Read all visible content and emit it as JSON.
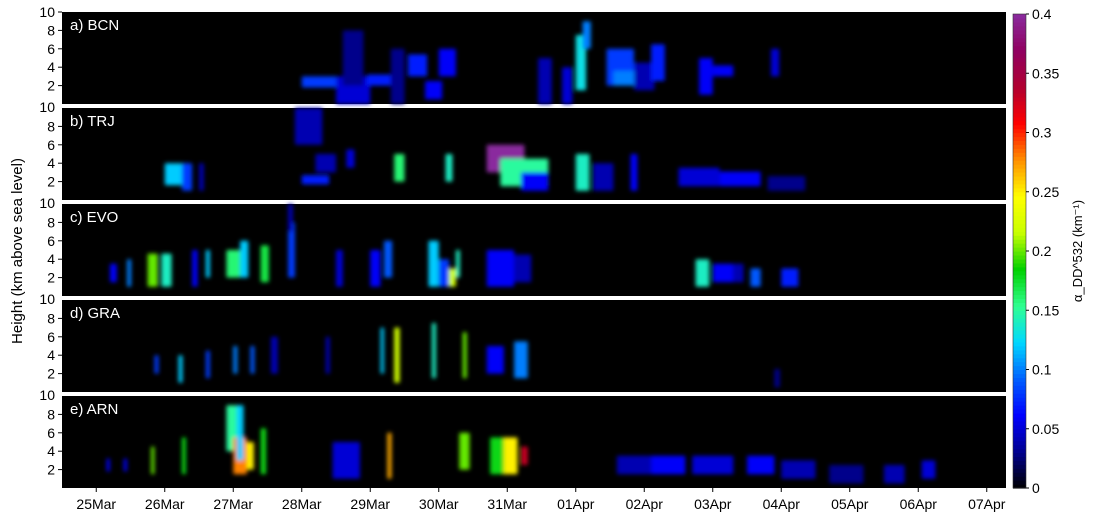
{
  "chart_data": {
    "type": "heatmap",
    "ylabel": "Height (km above sea level)",
    "x_tick_labels": [
      "25Mar",
      "26Mar",
      "27Mar",
      "28Mar",
      "29Mar",
      "30Mar",
      "31Mar",
      "01Apr",
      "02Apr",
      "03Apr",
      "04Apr",
      "05Apr",
      "06Apr",
      "07Apr"
    ],
    "y_ticks_top": [
      2,
      4,
      6,
      8,
      10
    ],
    "y_ticks_lower": [
      2,
      4,
      6,
      8
    ],
    "ylim_km": [
      0,
      10
    ],
    "colorbar": {
      "label": "α_DD^532 (km⁻¹)",
      "min": 0,
      "max": 0.4,
      "tick_labels": [
        "0",
        "0.05",
        "0.1",
        "0.15",
        "0.2",
        "0.25",
        "0.3",
        "0.35",
        "0.4"
      ],
      "colormap": [
        "#000000",
        "#00008f",
        "#0000ff",
        "#0060ff",
        "#00d8ff",
        "#30ff90",
        "#00d000",
        "#c8ff00",
        "#ffff00",
        "#ff9000",
        "#ff0000",
        "#b00030",
        "#900060",
        "#8a2b9e"
      ]
    },
    "panels": [
      {
        "label": "a) BCN",
        "cells": [
          {
            "day": 28.0,
            "w": 0.55,
            "h": 2.4,
            "d": 0.6,
            "v": 0.08
          },
          {
            "day": 28.5,
            "w": 0.5,
            "h": 1.5,
            "d": 1.5,
            "v": 0.05
          },
          {
            "day": 28.6,
            "w": 0.3,
            "h": 5.0,
            "d": 3.0,
            "v": 0.03
          },
          {
            "day": 28.95,
            "w": 0.35,
            "h": 2.6,
            "d": 0.6,
            "v": 0.07
          },
          {
            "day": 29.3,
            "w": 0.2,
            "h": 3.0,
            "d": 3.0,
            "v": 0.03
          },
          {
            "day": 29.55,
            "w": 0.28,
            "h": 4.2,
            "d": 1.2,
            "v": 0.07
          },
          {
            "day": 29.8,
            "w": 0.25,
            "h": 1.5,
            "d": 1.0,
            "v": 0.06
          },
          {
            "day": 30.0,
            "w": 0.25,
            "h": 4.5,
            "d": 1.5,
            "v": 0.06
          },
          {
            "day": 31.45,
            "w": 0.2,
            "h": 2.5,
            "d": 2.5,
            "v": 0.04
          },
          {
            "day": 31.8,
            "w": 0.15,
            "h": 2.0,
            "d": 2.0,
            "v": 0.05
          },
          {
            "day": 32.0,
            "w": 0.15,
            "h": 4.5,
            "d": 3.0,
            "v": 0.13
          },
          {
            "day": 32.1,
            "w": 0.12,
            "h": 7.5,
            "d": 1.5,
            "v": 0.1
          },
          {
            "day": 32.45,
            "w": 0.4,
            "h": 4.0,
            "d": 2.0,
            "v": 0.08
          },
          {
            "day": 32.55,
            "w": 0.35,
            "h": 2.8,
            "d": 0.8,
            "v": 0.1
          },
          {
            "day": 32.85,
            "w": 0.3,
            "h": 3.0,
            "d": 1.5,
            "v": 0.04
          },
          {
            "day": 33.1,
            "w": 0.2,
            "h": 4.5,
            "d": 2.0,
            "v": 0.07
          },
          {
            "day": 33.8,
            "w": 0.2,
            "h": 3.0,
            "d": 2.0,
            "v": 0.06
          },
          {
            "day": 34.0,
            "w": 0.3,
            "h": 3.6,
            "d": 0.6,
            "v": 0.06
          },
          {
            "day": 34.85,
            "w": 0.12,
            "h": 4.5,
            "d": 1.5,
            "v": 0.05
          }
        ]
      },
      {
        "label": "b) TRJ",
        "cells": [
          {
            "day": 26.0,
            "w": 0.35,
            "h": 2.8,
            "d": 1.2,
            "v": 0.12
          },
          {
            "day": 26.25,
            "w": 0.15,
            "h": 2.5,
            "d": 1.5,
            "v": 0.08
          },
          {
            "day": 26.5,
            "w": 0.07,
            "h": 2.5,
            "d": 1.5,
            "v": 0.04
          },
          {
            "day": 27.9,
            "w": 0.4,
            "h": 8.0,
            "d": 2.0,
            "v": 0.04
          },
          {
            "day": 28.0,
            "w": 0.4,
            "h": 2.2,
            "d": 0.5,
            "v": 0.07
          },
          {
            "day": 28.2,
            "w": 0.3,
            "h": 4.0,
            "d": 1.0,
            "v": 0.04
          },
          {
            "day": 28.65,
            "w": 0.12,
            "h": 4.5,
            "d": 1.0,
            "v": 0.05
          },
          {
            "day": 29.35,
            "w": 0.15,
            "h": 3.5,
            "d": 1.5,
            "v": 0.16
          },
          {
            "day": 30.1,
            "w": 0.1,
            "h": 3.5,
            "d": 1.5,
            "v": 0.14
          },
          {
            "day": 30.7,
            "w": 0.55,
            "h": 4.5,
            "d": 1.5,
            "v": 0.4
          },
          {
            "day": 30.9,
            "w": 0.7,
            "h": 3.0,
            "d": 1.5,
            "v": 0.15
          },
          {
            "day": 31.2,
            "w": 0.4,
            "h": 2.0,
            "d": 1.0,
            "v": 0.06
          },
          {
            "day": 32.0,
            "w": 0.2,
            "h": 3.0,
            "d": 2.0,
            "v": 0.14
          },
          {
            "day": 32.25,
            "w": 0.3,
            "h": 2.5,
            "d": 1.5,
            "v": 0.04
          },
          {
            "day": 32.8,
            "w": 0.1,
            "h": 3.0,
            "d": 2.0,
            "v": 0.06
          },
          {
            "day": 33.5,
            "w": 0.6,
            "h": 2.5,
            "d": 1.0,
            "v": 0.05
          },
          {
            "day": 34.1,
            "w": 0.6,
            "h": 2.3,
            "d": 0.8,
            "v": 0.06
          },
          {
            "day": 34.8,
            "w": 0.55,
            "h": 1.8,
            "d": 0.8,
            "v": 0.03
          }
        ]
      },
      {
        "label": "c) EVO",
        "cells": [
          {
            "day": 25.2,
            "w": 0.1,
            "h": 2.5,
            "d": 1.0,
            "v": 0.06
          },
          {
            "day": 25.45,
            "w": 0.06,
            "h": 2.5,
            "d": 1.5,
            "v": 0.1
          },
          {
            "day": 25.75,
            "w": 0.15,
            "h": 2.8,
            "d": 1.8,
            "v": 0.2
          },
          {
            "day": 25.95,
            "w": 0.15,
            "h": 2.8,
            "d": 1.8,
            "v": 0.14
          },
          {
            "day": 26.4,
            "w": 0.08,
            "h": 3.0,
            "d": 2.0,
            "v": 0.06
          },
          {
            "day": 26.6,
            "w": 0.06,
            "h": 3.5,
            "d": 1.5,
            "v": 0.12
          },
          {
            "day": 26.9,
            "w": 0.2,
            "h": 3.5,
            "d": 1.5,
            "v": 0.16
          },
          {
            "day": 27.1,
            "w": 0.12,
            "h": 4.0,
            "d": 2.0,
            "v": 0.12
          },
          {
            "day": 27.4,
            "w": 0.12,
            "h": 3.5,
            "d": 2.0,
            "v": 0.17
          },
          {
            "day": 27.8,
            "w": 0.1,
            "h": 5.0,
            "d": 3.0,
            "v": 0.08
          },
          {
            "day": 27.8,
            "w": 0.07,
            "h": 8.5,
            "d": 1.5,
            "v": 0.04
          },
          {
            "day": 28.5,
            "w": 0.1,
            "h": 3.0,
            "d": 2.0,
            "v": 0.05
          },
          {
            "day": 29.0,
            "w": 0.15,
            "h": 3.0,
            "d": 2.0,
            "v": 0.06
          },
          {
            "day": 29.2,
            "w": 0.12,
            "h": 4.0,
            "d": 2.0,
            "v": 0.09
          },
          {
            "day": 29.85,
            "w": 0.15,
            "h": 3.5,
            "d": 2.5,
            "v": 0.12
          },
          {
            "day": 30.0,
            "w": 0.15,
            "h": 2.5,
            "d": 1.5,
            "v": 0.08
          },
          {
            "day": 30.15,
            "w": 0.1,
            "h": 2.0,
            "d": 1.0,
            "v": 0.22
          },
          {
            "day": 30.25,
            "w": 0.06,
            "h": 3.5,
            "d": 1.5,
            "v": 0.14
          },
          {
            "day": 30.7,
            "w": 0.4,
            "h": 3.0,
            "d": 2.0,
            "v": 0.06
          },
          {
            "day": 31.1,
            "w": 0.25,
            "h": 3.0,
            "d": 1.5,
            "v": 0.04
          },
          {
            "day": 33.75,
            "w": 0.2,
            "h": 2.5,
            "d": 1.5,
            "v": 0.14
          },
          {
            "day": 34.0,
            "w": 0.3,
            "h": 2.5,
            "d": 1.0,
            "v": 0.06
          },
          {
            "day": 34.3,
            "w": 0.15,
            "h": 2.5,
            "d": 1.0,
            "v": 0.04
          },
          {
            "day": 34.55,
            "w": 0.15,
            "h": 2.0,
            "d": 1.0,
            "v": 0.09
          },
          {
            "day": 35.0,
            "w": 0.25,
            "h": 2.0,
            "d": 1.0,
            "v": 0.07
          }
        ]
      },
      {
        "label": "d) GRA",
        "cells": [
          {
            "day": 25.85,
            "w": 0.06,
            "h": 3.0,
            "d": 1.0,
            "v": 0.08
          },
          {
            "day": 26.2,
            "w": 0.06,
            "h": 2.5,
            "d": 1.5,
            "v": 0.12
          },
          {
            "day": 26.6,
            "w": 0.06,
            "h": 3.0,
            "d": 1.5,
            "v": 0.08
          },
          {
            "day": 27.0,
            "w": 0.06,
            "h": 3.5,
            "d": 1.5,
            "v": 0.1
          },
          {
            "day": 27.25,
            "w": 0.06,
            "h": 3.5,
            "d": 1.5,
            "v": 0.09
          },
          {
            "day": 27.55,
            "w": 0.1,
            "h": 4.0,
            "d": 2.0,
            "v": 0.04
          },
          {
            "day": 28.35,
            "w": 0.06,
            "h": 4.0,
            "d": 2.0,
            "v": 0.04
          },
          {
            "day": 29.15,
            "w": 0.05,
            "h": 4.5,
            "d": 2.5,
            "v": 0.12
          },
          {
            "day": 29.35,
            "w": 0.08,
            "h": 4.0,
            "d": 3.0,
            "v": 0.22
          },
          {
            "day": 29.9,
            "w": 0.06,
            "h": 4.5,
            "d": 3.0,
            "v": 0.14
          },
          {
            "day": 30.35,
            "w": 0.06,
            "h": 4.0,
            "d": 2.5,
            "v": 0.2
          },
          {
            "day": 30.7,
            "w": 0.25,
            "h": 3.5,
            "d": 1.5,
            "v": 0.06
          },
          {
            "day": 31.1,
            "w": 0.2,
            "h": 3.5,
            "d": 2.0,
            "v": 0.1
          },
          {
            "day": 34.9,
            "w": 0.08,
            "h": 1.5,
            "d": 1.0,
            "v": 0.03
          }
        ]
      },
      {
        "label": "e) ARN",
        "cells": [
          {
            "day": 25.15,
            "w": 0.05,
            "h": 2.5,
            "d": 0.7,
            "v": 0.06
          },
          {
            "day": 25.4,
            "w": 0.05,
            "h": 2.5,
            "d": 0.7,
            "v": 0.06
          },
          {
            "day": 25.8,
            "w": 0.05,
            "h": 3.0,
            "d": 1.5,
            "v": 0.2
          },
          {
            "day": 26.25,
            "w": 0.06,
            "h": 3.5,
            "d": 2.0,
            "v": 0.18
          },
          {
            "day": 26.9,
            "w": 0.25,
            "h": 6.5,
            "d": 2.5,
            "v": 0.15
          },
          {
            "day": 27.0,
            "w": 0.2,
            "h": 3.5,
            "d": 2.0,
            "v": 0.28
          },
          {
            "day": 27.05,
            "w": 0.1,
            "h": 6.0,
            "d": 3.0,
            "v": 0.12
          },
          {
            "day": 27.2,
            "w": 0.1,
            "h": 3.5,
            "d": 1.5,
            "v": 0.25
          },
          {
            "day": 27.4,
            "w": 0.08,
            "h": 4.0,
            "d": 2.5,
            "v": 0.18
          },
          {
            "day": 28.45,
            "w": 0.4,
            "h": 3.0,
            "d": 2.0,
            "v": 0.05
          },
          {
            "day": 29.25,
            "w": 0.06,
            "h": 3.5,
            "d": 2.5,
            "v": 0.27
          },
          {
            "day": 30.3,
            "w": 0.15,
            "h": 4.0,
            "d": 2.0,
            "v": 0.2
          },
          {
            "day": 30.75,
            "w": 0.25,
            "h": 3.5,
            "d": 2.0,
            "v": 0.18
          },
          {
            "day": 30.95,
            "w": 0.2,
            "h": 3.5,
            "d": 2.0,
            "v": 0.25
          },
          {
            "day": 31.2,
            "w": 0.1,
            "h": 3.5,
            "d": 1.0,
            "v": 0.33
          },
          {
            "day": 32.6,
            "w": 0.5,
            "h": 2.5,
            "d": 1.0,
            "v": 0.04
          },
          {
            "day": 33.1,
            "w": 0.5,
            "h": 2.5,
            "d": 1.0,
            "v": 0.06
          },
          {
            "day": 33.7,
            "w": 0.6,
            "h": 2.5,
            "d": 1.0,
            "v": 0.05
          },
          {
            "day": 34.5,
            "w": 0.4,
            "h": 2.5,
            "d": 1.0,
            "v": 0.06
          },
          {
            "day": 35.0,
            "w": 0.5,
            "h": 2.0,
            "d": 1.0,
            "v": 0.04
          },
          {
            "day": 35.7,
            "w": 0.5,
            "h": 1.5,
            "d": 1.0,
            "v": 0.03
          },
          {
            "day": 36.5,
            "w": 0.3,
            "h": 1.5,
            "d": 1.0,
            "v": 0.04
          },
          {
            "day": 37.05,
            "w": 0.2,
            "h": 2.0,
            "d": 1.0,
            "v": 0.05
          }
        ]
      }
    ]
  }
}
